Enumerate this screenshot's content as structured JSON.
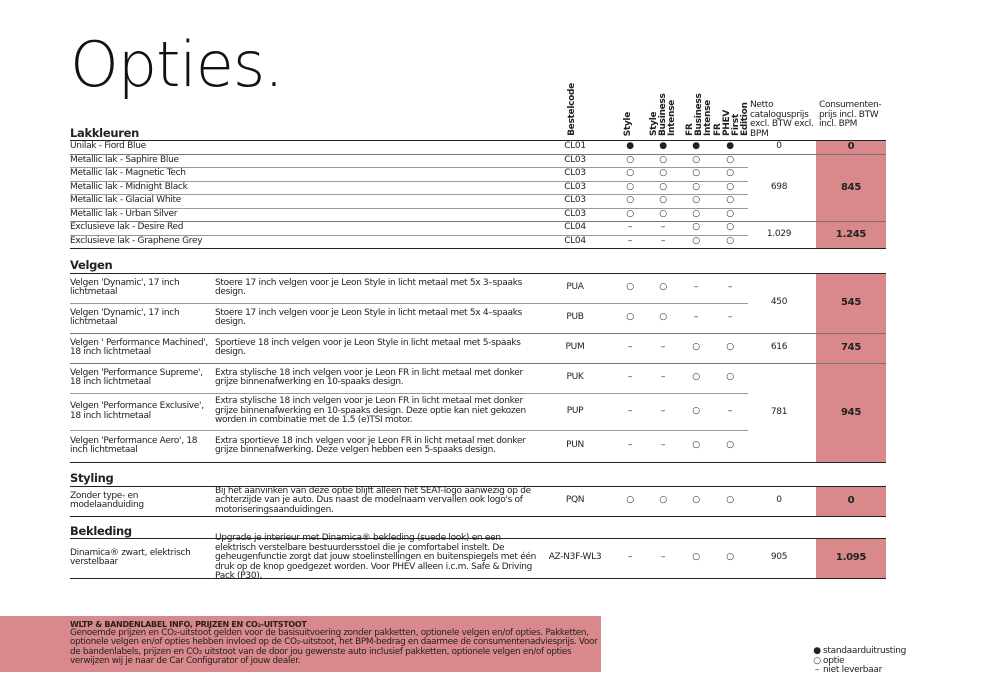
{
  "header": {
    "title": "Opties."
  },
  "columns": [
    "Bestelcode",
    "Style",
    "Style Business Intense",
    "FR Business Intense",
    "FR PHEV First Edition",
    "Netto catalogusprijs excl. BTW excl. BPM",
    "Consumenten-prijs incl. BTW incl. BPM"
  ],
  "sections": [
    {
      "title": "Lakkleuren",
      "groups": [
        {
          "netto": "0",
          "consumer": "0",
          "items": [
            {
              "name": "Unilak - Fiord Blue",
              "code": "CL01",
              "avail": [
                "●",
                "●",
                "●",
                "●"
              ]
            }
          ]
        },
        {
          "netto": "698",
          "consumer": "845",
          "items": [
            {
              "name": "Metallic lak - Saphire Blue",
              "code": "CL03",
              "avail": [
                "○",
                "○",
                "○",
                "○"
              ]
            },
            {
              "name": "Metallic lak - Magnetic Tech",
              "code": "CL03",
              "avail": [
                "○",
                "○",
                "○",
                "○"
              ]
            },
            {
              "name": "Metallic lak - Midnight Black",
              "code": "CL03",
              "avail": [
                "○",
                "○",
                "○",
                "○"
              ]
            },
            {
              "name": "Metallic lak - Glacial White",
              "code": "CL03",
              "avail": [
                "○",
                "○",
                "○",
                "○"
              ]
            },
            {
              "name": "Metallic lak - Urban Silver",
              "code": "CL03",
              "avail": [
                "○",
                "○",
                "○",
                "○"
              ]
            }
          ]
        },
        {
          "netto": "1.029",
          "consumer": "1.245",
          "items": [
            {
              "name": "Exclusieve lak - Desire Red",
              "code": "CL04",
              "avail": [
                "–",
                "–",
                "○",
                "○"
              ]
            },
            {
              "name": "Exclusieve lak - Graphene Grey",
              "code": "CL04",
              "avail": [
                "–",
                "–",
                "○",
                "○"
              ]
            }
          ]
        }
      ]
    },
    {
      "title": "Velgen",
      "groups": [
        {
          "netto": "450",
          "consumer": "545",
          "items": [
            {
              "name": "Velgen 'Dynamic', 17 inch lichtmetaal",
              "desc": "Stoere 17 inch velgen voor je Leon Style in licht metaal met 5x 3–spaaks design.",
              "code": "PUA",
              "avail": [
                "○",
                "○",
                "–",
                "–"
              ]
            },
            {
              "name": "Velgen 'Dynamic', 17 inch lichtmetaal",
              "desc": "Stoere 17 inch velgen voor je Leon Style in licht metaal met 5x 4–spaaks design.",
              "code": "PUB",
              "avail": [
                "○",
                "○",
                "–",
                "–"
              ]
            }
          ]
        },
        {
          "netto": "616",
          "consumer": "745",
          "items": [
            {
              "name": "Velgen ' Performance Machined', 18 inch lichtmetaal",
              "desc": "Sportieve 18 inch velgen voor je Leon Style in licht metaal met 5-spaaks design.",
              "code": "PUM",
              "avail": [
                "–",
                "–",
                "○",
                "○"
              ]
            }
          ]
        },
        {
          "netto": "781",
          "consumer": "945",
          "items": [
            {
              "name": "Velgen 'Performance Supreme', 18 inch lichtmetaal",
              "desc": "Extra stylische 18 inch velgen voor je Leon FR in licht metaal met donker grijze binnenafwerking en 10-spaaks design.",
              "code": "PUK",
              "avail": [
                "–",
                "–",
                "○",
                "○"
              ]
            },
            {
              "name": "Velgen 'Performance Exclusive', 18 inch lichtmetaal",
              "desc": "Extra stylische 18 inch velgen voor je Leon FR in licht metaal met donker grijze binnenafwerking en 10-spaaks design. Deze optie kan niet gekozen worden in combinatie met de 1.5 (e)TSI motor.",
              "code": "PUP",
              "avail": [
                "–",
                "–",
                "○",
                "–"
              ]
            },
            {
              "name": "Velgen 'Performance Aero', 18 inch lichtmetaal",
              "desc": "Extra sportieve 18 inch velgen voor je Leon FR in licht metaal met donker grijze binnenafwerking. Deze velgen hebben een 5-spaaks design.",
              "code": "PUN",
              "avail": [
                "–",
                "–",
                "○",
                "○"
              ]
            }
          ]
        }
      ]
    },
    {
      "title": "Styling",
      "groups": [
        {
          "netto": "0",
          "consumer": "0",
          "items": [
            {
              "name": "Zonder type- en modelaanduiding",
              "desc": "Bij het aanvinken van deze optie blijft alleen het SEAT-logo aanwezig op de achterzijde van je auto. Dus naast de modelnaam vervallen ook logo's of motoriseringsaanduidingen.",
              "code": "PQN",
              "avail": [
                "○",
                "○",
                "○",
                "○"
              ]
            }
          ]
        }
      ]
    },
    {
      "title": "Bekleding",
      "groups": [
        {
          "netto": "905",
          "consumer": "1.095",
          "items": [
            {
              "name": "Dinamica® zwart, elektrisch verstelbaar",
              "desc": "Upgrade je interieur met Dinamica® bekleding (suede look) en een elektrisch verstelbare bestuurdersstoel die je comfortabel instelt. De geheugenfunctie zorgt dat jouw stoelinstellingen en buitenspiegels met één druk op de knop goedgezet worden. Voor PHEV alleen i.c.m. Safe & Driving Pack (P30).",
              "code": "AZ-N3F-WL3",
              "avail": [
                "–",
                "–",
                "○",
                "○"
              ]
            }
          ]
        }
      ]
    }
  ],
  "footer": {
    "heading": "WLTP & BANDENLABEL INFO, PRIJZEN EN CO₂-UITSTOOT",
    "text": "Genoemde prijzen en CO₂-uitstoot gelden voor de basisuitvoering zonder pakketten, optionele velgen en/of opties. Pakketten, optionele velgen en/of opties hebben invloed op de CO₂-uitstoot, het BPM-bedrag en daarmee de consumentenadviesprijs. Voor de bandenlabels, prijzen en CO₂ uitstoot van de door jou gewenste auto inclusief pakketten, optionele velgen en/of opties verwijzen wij je naar de Car Configurator of jouw dealer."
  },
  "legend": [
    {
      "symbol": "●",
      "label": "standaarduitrusting"
    },
    {
      "symbol": "○",
      "label": "optie"
    },
    {
      "symbol": "–",
      "label": "niet leverbaar"
    }
  ]
}
